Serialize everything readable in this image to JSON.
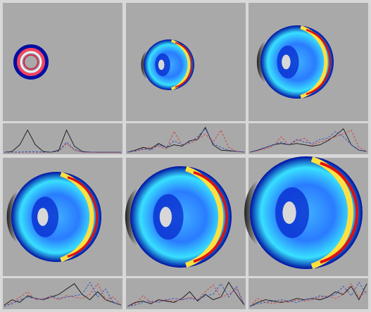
{
  "chart_data": [
    {
      "type": "line",
      "ylim": [
        0,
        1
      ],
      "series": [
        {
          "color": "#111111",
          "values": [
            0.02,
            0.05,
            0.3,
            0.85,
            0.3,
            0.05,
            0.02,
            0.1,
            0.85,
            0.25,
            0.05,
            0.03,
            0.02,
            0.02,
            0.02,
            0.02
          ]
        },
        {
          "color": "#d04040",
          "values": [
            0.02,
            0.02,
            0.02,
            0.03,
            0.03,
            0.02,
            0.02,
            0.05,
            0.35,
            0.1,
            0.03,
            0.02,
            0.02,
            0.02,
            0.02,
            0.02
          ]
        },
        {
          "color": "#3050c0",
          "values": [
            0.03,
            0.03,
            0.03,
            0.04,
            0.04,
            0.03,
            0.03,
            0.06,
            0.4,
            0.12,
            0.04,
            0.03,
            0.03,
            0.03,
            0.03,
            0.03
          ]
        }
      ]
    },
    {
      "type": "line",
      "ylim": [
        0,
        1
      ],
      "series": [
        {
          "color": "#111111",
          "values": [
            0.02,
            0.1,
            0.2,
            0.15,
            0.35,
            0.2,
            0.3,
            0.25,
            0.45,
            0.5,
            0.95,
            0.3,
            0.1,
            0.08,
            0.05,
            0.03
          ]
        },
        {
          "color": "#d04040",
          "values": [
            0.02,
            0.08,
            0.12,
            0.2,
            0.25,
            0.15,
            0.8,
            0.3,
            0.35,
            0.5,
            0.7,
            0.4,
            0.85,
            0.2,
            0.05,
            0.03
          ]
        },
        {
          "color": "#3050c0",
          "values": [
            0.03,
            0.06,
            0.15,
            0.1,
            0.3,
            0.2,
            0.45,
            0.3,
            0.4,
            0.6,
            0.9,
            0.35,
            0.2,
            0.1,
            0.05,
            0.03
          ]
        }
      ]
    },
    {
      "type": "line",
      "ylim": [
        0,
        1
      ],
      "series": [
        {
          "color": "#111111",
          "values": [
            0.02,
            0.1,
            0.2,
            0.3,
            0.35,
            0.3,
            0.35,
            0.3,
            0.25,
            0.3,
            0.45,
            0.65,
            0.9,
            0.3,
            0.1,
            0.05
          ]
        },
        {
          "color": "#d04040",
          "values": [
            0.02,
            0.08,
            0.15,
            0.25,
            0.6,
            0.3,
            0.45,
            0.55,
            0.3,
            0.4,
            0.5,
            0.6,
            0.7,
            0.85,
            0.2,
            0.05
          ]
        },
        {
          "color": "#3050c0",
          "values": [
            0.03,
            0.1,
            0.2,
            0.3,
            0.4,
            0.3,
            0.5,
            0.4,
            0.35,
            0.5,
            0.55,
            0.8,
            0.6,
            0.3,
            0.1,
            0.05
          ]
        }
      ]
    },
    {
      "type": "line",
      "ylim": [
        0,
        1
      ],
      "series": [
        {
          "color": "#111111",
          "values": [
            0.1,
            0.3,
            0.2,
            0.45,
            0.35,
            0.3,
            0.4,
            0.5,
            0.7,
            0.9,
            0.5,
            0.3,
            0.6,
            0.3,
            0.2,
            0.1
          ]
        },
        {
          "color": "#d04040",
          "values": [
            0.05,
            0.2,
            0.4,
            0.6,
            0.3,
            0.35,
            0.4,
            0.3,
            0.45,
            0.4,
            0.35,
            0.5,
            0.9,
            0.3,
            0.4,
            0.1
          ]
        },
        {
          "color": "#3050c0",
          "values": [
            0.05,
            0.15,
            0.3,
            0.4,
            0.35,
            0.3,
            0.45,
            0.35,
            0.4,
            0.45,
            0.5,
            0.95,
            0.4,
            0.7,
            0.2,
            0.1
          ]
        }
      ]
    },
    {
      "type": "line",
      "ylim": [
        0,
        1
      ],
      "series": [
        {
          "color": "#111111",
          "values": [
            0.05,
            0.2,
            0.25,
            0.15,
            0.3,
            0.25,
            0.2,
            0.35,
            0.6,
            0.25,
            0.5,
            0.3,
            0.4,
            0.95,
            0.5,
            0.1
          ]
        },
        {
          "color": "#d04040",
          "values": [
            0.05,
            0.15,
            0.45,
            0.2,
            0.25,
            0.3,
            0.25,
            0.3,
            0.4,
            0.3,
            0.6,
            0.85,
            0.4,
            0.5,
            0.7,
            0.1
          ]
        },
        {
          "color": "#3050c0",
          "values": [
            0.05,
            0.1,
            0.2,
            0.25,
            0.2,
            0.3,
            0.35,
            0.3,
            0.35,
            0.3,
            0.45,
            0.5,
            0.9,
            0.4,
            0.8,
            0.1
          ]
        }
      ]
    },
    {
      "type": "line",
      "ylim": [
        0,
        1
      ],
      "series": [
        {
          "color": "#111111",
          "values": [
            0.05,
            0.2,
            0.3,
            0.25,
            0.2,
            0.25,
            0.35,
            0.3,
            0.35,
            0.3,
            0.4,
            0.6,
            0.5,
            0.8,
            0.3,
            0.9
          ]
        },
        {
          "color": "#d04040",
          "values": [
            0.05,
            0.35,
            0.2,
            0.15,
            0.25,
            0.2,
            0.3,
            0.25,
            0.3,
            0.4,
            0.45,
            0.35,
            0.5,
            0.9,
            0.4,
            0.6
          ]
        },
        {
          "color": "#3050c0",
          "values": [
            0.05,
            0.15,
            0.2,
            0.25,
            0.3,
            0.25,
            0.2,
            0.3,
            0.35,
            0.45,
            0.4,
            0.5,
            0.8,
            0.45,
            0.95,
            0.5
          ]
        }
      ]
    }
  ]
}
